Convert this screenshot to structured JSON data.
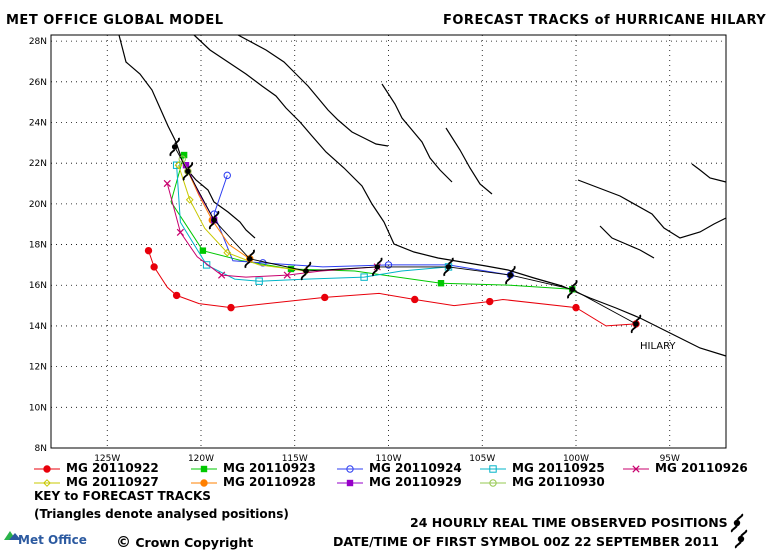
{
  "header": {
    "left_title": "MET OFFICE GLOBAL MODEL",
    "right_title": "FORECAST TRACKS of HURRICANE HILARY"
  },
  "map": {
    "lon_range": [
      -128,
      -92
    ],
    "lat_range": [
      8,
      28.3
    ],
    "y_ticks": [
      "28N",
      "26N",
      "24N",
      "22N",
      "20N",
      "18N",
      "16N",
      "14N",
      "12N",
      "10N",
      "8N"
    ],
    "x_ticks": [
      "125W",
      "120W",
      "115W",
      "110W",
      "105W",
      "100W",
      "95W"
    ],
    "storm_label": "HILARY",
    "grid": "dotted"
  },
  "chart_data": {
    "type": "line",
    "title": "FORECAST TRACKS of HURRICANE HILARY",
    "xlabel": "",
    "ylabel": "",
    "xlim": [
      -128,
      -92
    ],
    "ylim": [
      8,
      28.3
    ],
    "observed": {
      "name": "24 HOURLY REAL TIME OBSERVED POSITIONS",
      "color": "#000000",
      "points": [
        [
          -96.8,
          14.1
        ],
        [
          -100.2,
          15.8
        ],
        [
          -103.5,
          16.5
        ],
        [
          -106.8,
          16.9
        ],
        [
          -110.6,
          16.9
        ],
        [
          -114.4,
          16.7
        ],
        [
          -117.4,
          17.3
        ],
        [
          -119.3,
          19.2
        ],
        [
          -120.7,
          21.6
        ],
        [
          -121.4,
          22.8
        ]
      ]
    },
    "series": [
      {
        "name": "MG 20110922",
        "color": "#e8000b",
        "marker": "circle-filled",
        "points": [
          [
            -96.8,
            14.1
          ],
          [
            -98.4,
            14.0
          ],
          [
            -100.0,
            14.9
          ],
          [
            -103.9,
            15.3
          ],
          [
            -104.6,
            15.2
          ],
          [
            -106.5,
            15.0
          ],
          [
            -108.6,
            15.3
          ],
          [
            -110.5,
            15.6
          ],
          [
            -113.4,
            15.4
          ],
          [
            -116.5,
            15.1
          ],
          [
            -118.4,
            14.9
          ],
          [
            -120.1,
            15.1
          ],
          [
            -121.3,
            15.5
          ],
          [
            -121.8,
            15.9
          ],
          [
            -122.5,
            16.9
          ],
          [
            -122.8,
            17.7
          ]
        ]
      },
      {
        "name": "MG 20110923",
        "color": "#00c800",
        "marker": "square-filled",
        "points": [
          [
            -100.2,
            15.8
          ],
          [
            -103.5,
            16.0
          ],
          [
            -107.2,
            16.1
          ],
          [
            -111.8,
            16.7
          ],
          [
            -115.2,
            16.8
          ],
          [
            -117.8,
            17.2
          ],
          [
            -119.9,
            17.7
          ],
          [
            -121.6,
            20.1
          ],
          [
            -120.9,
            22.4
          ]
        ]
      },
      {
        "name": "MG 20110924",
        "color": "#2c3df0",
        "marker": "circle-open",
        "points": [
          [
            -103.5,
            16.5
          ],
          [
            -106.8,
            17.0
          ],
          [
            -110.0,
            17.0
          ],
          [
            -113.5,
            16.9
          ],
          [
            -116.7,
            17.1
          ],
          [
            -118.3,
            17.2
          ],
          [
            -119.3,
            19.5
          ],
          [
            -118.6,
            21.4
          ]
        ]
      },
      {
        "name": "MG 20110925",
        "color": "#00b4c8",
        "marker": "square-open",
        "points": [
          [
            -106.8,
            16.9
          ],
          [
            -109.3,
            16.7
          ],
          [
            -111.3,
            16.4
          ],
          [
            -114.4,
            16.3
          ],
          [
            -116.9,
            16.2
          ],
          [
            -118.2,
            16.3
          ],
          [
            -119.7,
            17.0
          ],
          [
            -121.1,
            19.1
          ],
          [
            -121.3,
            21.9
          ]
        ]
      },
      {
        "name": "MG 20110926",
        "color": "#c8006e",
        "marker": "x",
        "points": [
          [
            -110.6,
            16.9
          ],
          [
            -113.6,
            16.7
          ],
          [
            -115.4,
            16.5
          ],
          [
            -117.6,
            16.4
          ],
          [
            -118.9,
            16.5
          ],
          [
            -120.2,
            17.4
          ],
          [
            -121.1,
            18.6
          ],
          [
            -121.8,
            21.0
          ]
        ]
      },
      {
        "name": "MG 20110927",
        "color": "#c8c800",
        "marker": "diamond-open",
        "points": [
          [
            -114.4,
            16.7
          ],
          [
            -116.9,
            17.0
          ],
          [
            -118.6,
            17.6
          ],
          [
            -119.8,
            18.8
          ],
          [
            -120.6,
            20.2
          ],
          [
            -121.2,
            21.9
          ]
        ]
      },
      {
        "name": "MG 20110928",
        "color": "#ff8000",
        "marker": "circle-filled",
        "points": [
          [
            -117.4,
            17.3
          ],
          [
            -118.5,
            18.0
          ],
          [
            -119.4,
            19.2
          ],
          [
            -120.1,
            20.4
          ],
          [
            -120.7,
            21.6
          ]
        ]
      },
      {
        "name": "MG 20110929",
        "color": "#9600c8",
        "marker": "square-filled",
        "points": [
          [
            -119.3,
            19.2
          ],
          [
            -120.1,
            20.5
          ],
          [
            -120.8,
            21.9
          ]
        ]
      },
      {
        "name": "MG 20110930",
        "color": "#96c850",
        "marker": "circle-open",
        "points": [
          [
            -120.7,
            21.6
          ],
          [
            -121.0,
            22.2
          ]
        ]
      }
    ]
  },
  "legend": {
    "key_title": "KEY to FORECAST TRACKS",
    "key_note": "(Triangles denote analysed positions)"
  },
  "footer": {
    "observed_label": "24 HOURLY REAL TIME OBSERVED POSITIONS",
    "datetime_label": "DATE/TIME OF FIRST SYMBOL 00Z 22 SEPTEMBER 2011",
    "logo_text": "Met Office",
    "copyright": "Crown Copyright",
    "copyright_symbol": "©"
  }
}
